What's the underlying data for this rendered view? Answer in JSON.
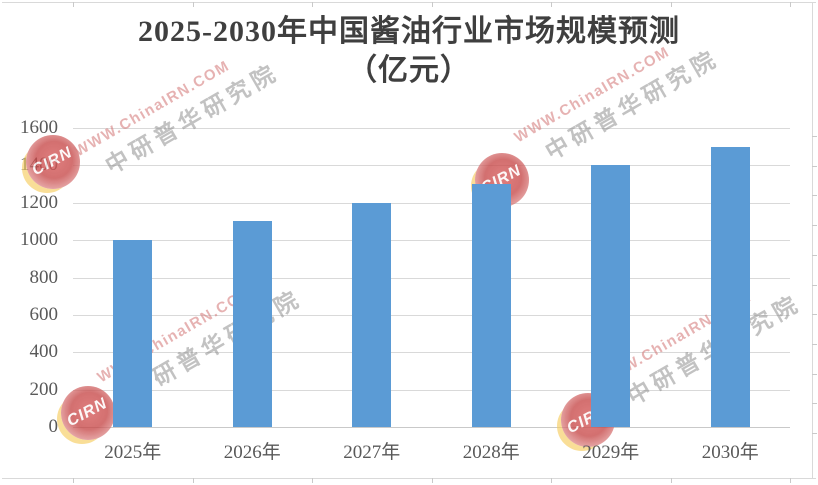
{
  "chart_data": {
    "type": "bar",
    "title": "2025-2030年中国酱油行业市场规模预测",
    "subtitle": "（亿元）",
    "categories": [
      "2025年",
      "2026年",
      "2027年",
      "2028年",
      "2029年",
      "2030年"
    ],
    "values": [
      1000,
      1100,
      1200,
      1300,
      1400,
      1500
    ],
    "ylim": [
      0,
      1600
    ],
    "ytick_step": 200,
    "ytick_labels": [
      "0",
      "200",
      "400",
      "600",
      "800",
      "1000",
      "1200",
      "1400",
      "1600"
    ],
    "xlabel": "",
    "ylabel": "",
    "grid": true,
    "legend_position": "none",
    "bar_color": "#5b9bd5",
    "gridline_color": "#d9d9d9",
    "axis_label_color": "#595959",
    "title_color": "#3f3f3f"
  },
  "watermark": {
    "url_text": "WWW.ChinaIRN.COM",
    "brand_text": "中研普华研究院",
    "logo_text": "CIRN",
    "logo_color": "#c64848",
    "crescent_color": "#f6cc5c"
  }
}
